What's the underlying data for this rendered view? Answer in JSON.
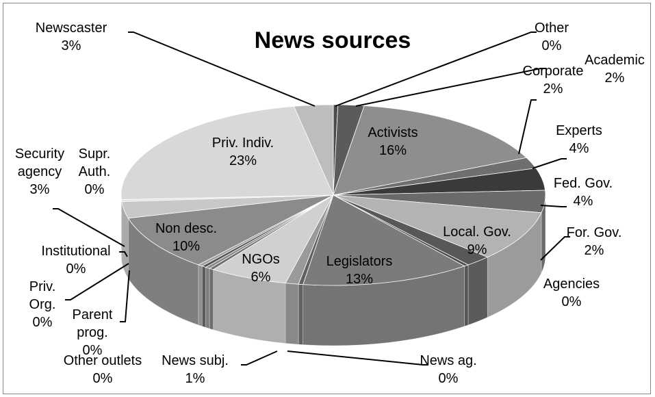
{
  "chart_data": {
    "type": "pie",
    "title": "News sources",
    "slices": [
      {
        "label": "Other",
        "value": "0%",
        "pct": 0
      },
      {
        "label": "Academic",
        "value": "2%",
        "pct": 2
      },
      {
        "label": "Activists",
        "value": "16%",
        "pct": 16
      },
      {
        "label": "Corporate",
        "value": "2%",
        "pct": 2
      },
      {
        "label": "Experts",
        "value": "4%",
        "pct": 4
      },
      {
        "label": "Fed. Gov.",
        "value": "4%",
        "pct": 4
      },
      {
        "label": "Local. Gov.",
        "value": "9%",
        "pct": 9
      },
      {
        "label": "For. Gov.",
        "value": "2%",
        "pct": 2
      },
      {
        "label": "Agencies",
        "value": "0%",
        "pct": 0
      },
      {
        "label": "Legislators",
        "value": "13%",
        "pct": 13
      },
      {
        "label": "News ag.",
        "value": "0%",
        "pct": 0
      },
      {
        "label": "News subj.",
        "value": "1%",
        "pct": 1
      },
      {
        "label": "NGOs",
        "value": "6%",
        "pct": 6
      },
      {
        "label": "Other outlets",
        "value": "0%",
        "pct": 0
      },
      {
        "label": "Parent prog.",
        "value": "0%",
        "pct": 0
      },
      {
        "label": "Priv. Org.",
        "value": "0%",
        "pct": 0
      },
      {
        "label": "Institutional",
        "value": "0%",
        "pct": 0
      },
      {
        "label": "Non desc.",
        "value": "10%",
        "pct": 10
      },
      {
        "label": "Security agency",
        "value": "3%",
        "pct": 3
      },
      {
        "label": "Supr. Auth.",
        "value": "0%",
        "pct": 0
      },
      {
        "label": "Priv. Indiv.",
        "value": "23%",
        "pct": 23
      },
      {
        "label": "Newscaster",
        "value": "3%",
        "pct": 3
      }
    ],
    "legend": "none",
    "style": "3d-exploded-off",
    "colors": {
      "activists": "#8c8c8c",
      "legislators": "#7a7a7a",
      "local_gov": "#b4b4b4",
      "priv_indiv": "#d9d9d9",
      "non_desc": "#8a8a8a",
      "ngos": "#cfcfcf",
      "dark": "#3f3f3f"
    }
  }
}
